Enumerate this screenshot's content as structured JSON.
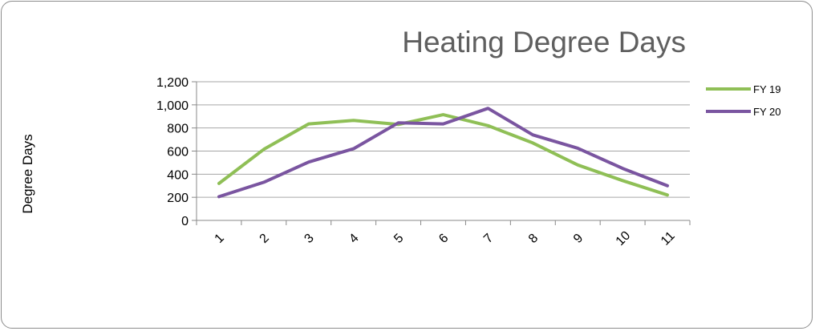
{
  "chart_data": {
    "type": "line",
    "title": "Heating Degree Days",
    "xlabel": "",
    "ylabel": "Degree Days",
    "categories": [
      "1",
      "2",
      "3",
      "4",
      "5",
      "6",
      "7",
      "8",
      "9",
      "10",
      "11"
    ],
    "ylim": [
      0,
      1200
    ],
    "yticks": [
      "0",
      "200",
      "400",
      "600",
      "800",
      "1,000",
      "1,200"
    ],
    "grid": true,
    "legend": "right",
    "series": [
      {
        "name": "FY 19",
        "color": "#8fbf56",
        "values": [
          320,
          615,
          835,
          865,
          830,
          915,
          820,
          670,
          480,
          345,
          220
        ]
      },
      {
        "name": "FY 20",
        "color": "#7a55a0",
        "values": [
          205,
          330,
          505,
          620,
          845,
          835,
          970,
          740,
          625,
          450,
          300
        ]
      }
    ]
  }
}
